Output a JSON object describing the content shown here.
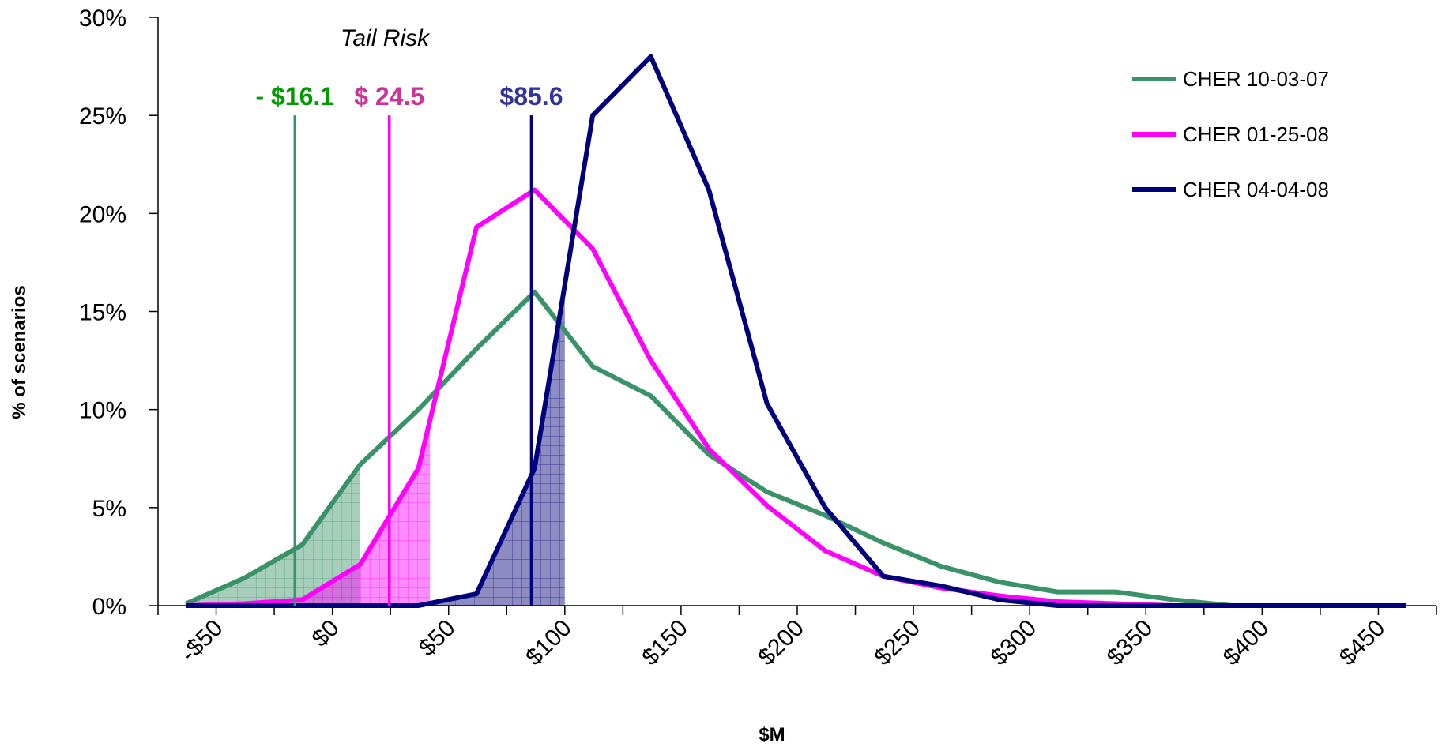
{
  "chart_data": {
    "type": "line",
    "title": "",
    "xlabel": "$M",
    "ylabel": "% of scenarios",
    "xlim": [
      -75,
      475
    ],
    "ylim": [
      0,
      30
    ],
    "x_ticks": [
      -50,
      0,
      50,
      100,
      150,
      200,
      250,
      300,
      350,
      400,
      450
    ],
    "x_tick_labels": [
      "-$50",
      "$0",
      "$50",
      "$100",
      "$150",
      "$200",
      "$250",
      "$300",
      "$350",
      "$400",
      "$450"
    ],
    "y_ticks": [
      0,
      5,
      10,
      15,
      20,
      25,
      30
    ],
    "y_tick_labels": [
      "0%",
      "5%",
      "10%",
      "15%",
      "20%",
      "25%",
      "30%"
    ],
    "grid": false,
    "legend_position": "top-right",
    "annotation": "Tail Risk",
    "x": [
      -63,
      -38,
      -13,
      12,
      37,
      62,
      87,
      112,
      137,
      162,
      187,
      212,
      237,
      262,
      287,
      312,
      337,
      362,
      387,
      412,
      437,
      462
    ],
    "series": [
      {
        "name": "CHER 10-03-07",
        "color": "#3a9368",
        "values": [
          0.1,
          1.4,
          3.1,
          7.2,
          10.0,
          13.1,
          16.0,
          12.2,
          10.7,
          7.7,
          5.8,
          4.6,
          3.2,
          2.0,
          1.2,
          0.7,
          0.7,
          0.3,
          0.0,
          0.0,
          0.0,
          0.0
        ]
      },
      {
        "name": "CHER 01-25-08",
        "color": "#ff00ff",
        "values": [
          0.0,
          0.1,
          0.3,
          2.1,
          7.0,
          19.3,
          21.2,
          18.2,
          12.5,
          8.0,
          5.1,
          2.8,
          1.5,
          0.9,
          0.5,
          0.2,
          0.1,
          0.0,
          0.0,
          0.0,
          0.0,
          0.0
        ]
      },
      {
        "name": "CHER 04-04-08",
        "color": "#00007a",
        "values": [
          0.0,
          0.0,
          0.0,
          0.0,
          0.0,
          0.6,
          7.0,
          25.0,
          28.0,
          21.2,
          10.3,
          5.0,
          1.5,
          1.0,
          0.3,
          0.0,
          0.0,
          0.0,
          0.0,
          0.0,
          0.0,
          0.0
        ]
      }
    ],
    "markers": [
      {
        "label": "- $16.1",
        "x": -16.1,
        "y": 25,
        "color": "#3a9368",
        "label_color": "#009a00",
        "shade_to": 12
      },
      {
        "label": "$ 24.5",
        "x": 24.5,
        "y": 25,
        "color": "#ff00ff",
        "label_color": "#cc3399",
        "shade_to": 42
      },
      {
        "label": "$85.6",
        "x": 85.6,
        "y": 25,
        "color": "#00007a",
        "label_color": "#333399",
        "shade_to": 100
      }
    ]
  }
}
